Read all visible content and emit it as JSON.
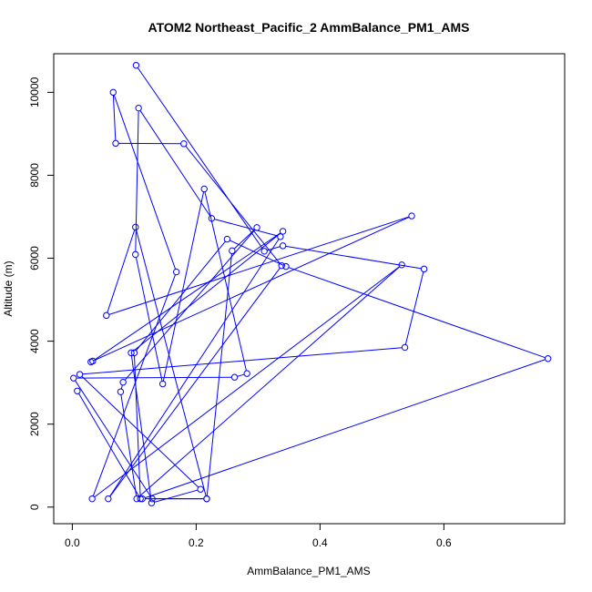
{
  "chart_data": {
    "type": "line",
    "title": "ATOM2 Northeast_Pacific_2 AmmBalance_PM1_AMS",
    "xlabel": "AmmBalance_PM1_AMS",
    "ylabel": "Altitude (m)",
    "xlim": [
      -0.03,
      0.795
    ],
    "ylim": [
      -400,
      10930
    ],
    "xticks": [
      0.0,
      0.2,
      0.4,
      0.6
    ],
    "xtick_labels": [
      "0.0",
      "0.2",
      "0.4",
      "0.6"
    ],
    "yticks": [
      0,
      2000,
      4000,
      6000,
      8000,
      10000
    ],
    "ytick_labels": [
      "0",
      "2000",
      "4000",
      "6000",
      "8000",
      "10000"
    ],
    "grid": false,
    "color": "#0000ff",
    "series": [
      {
        "x": [
          0.103,
          0.31,
          0.34,
          0.568,
          0.537,
          0.012,
          0.207,
          0.128,
          0.095,
          0.34,
          0.033,
          0.03,
          0.548,
          0.055,
          0.102,
          0.217,
          0.258,
          0.298,
          0.082,
          0.078,
          0.104,
          0.532,
          0.032,
          0.168,
          0.066,
          0.07,
          0.18,
          0.338,
          0.058,
          0.336,
          0.225,
          0.107,
          0.102,
          0.146,
          0.213,
          0.282,
          0.262,
          0.002,
          0.129,
          0.217,
          0.113,
          0.768,
          0.345,
          0.25,
          0.1,
          0.11,
          0.008
        ],
        "y": [
          10650,
          6170,
          6300,
          5740,
          3850,
          3200,
          430,
          100,
          3720,
          6650,
          3520,
          3500,
          7020,
          4620,
          6750,
          200,
          6180,
          6740,
          3010,
          2780,
          200,
          5840,
          200,
          5670,
          10000,
          8770,
          8760,
          5820,
          200,
          6520,
          6960,
          9620,
          6090,
          2970,
          7670,
          3220,
          3130,
          3110,
          200,
          200,
          200,
          3580,
          5800,
          6460,
          3720,
          200,
          2800
        ]
      }
    ]
  }
}
